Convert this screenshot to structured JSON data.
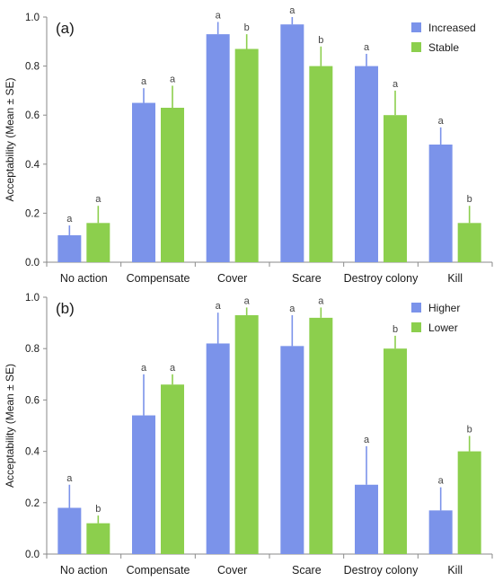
{
  "chart_data": [
    {
      "type": "bar",
      "panel_label": "(a)",
      "ylabel": "Acceptability (Mean ± SE)",
      "ylim": [
        0,
        1.0
      ],
      "yticks": [
        "0.0",
        "0.2",
        "0.4",
        "0.6",
        "0.8",
        "1.0"
      ],
      "categories": [
        "No action",
        "Compensate",
        "Cover",
        "Scare",
        "Destroy colony",
        "Kill"
      ],
      "legend_position": "top-right",
      "series": [
        {
          "name": "Increased",
          "color": "#7b93ea",
          "values": [
            0.11,
            0.65,
            0.93,
            0.97,
            0.8,
            0.48
          ],
          "errors": [
            0.04,
            0.06,
            0.05,
            0.04,
            0.05,
            0.07
          ],
          "letters": [
            "a",
            "a",
            "a",
            "a",
            "a",
            "a"
          ]
        },
        {
          "name": "Stable",
          "color": "#8ccf4d",
          "values": [
            0.16,
            0.63,
            0.87,
            0.8,
            0.6,
            0.16
          ],
          "errors": [
            0.07,
            0.09,
            0.06,
            0.08,
            0.1,
            0.07
          ],
          "letters": [
            "a",
            "a",
            "b",
            "b",
            "a",
            "b"
          ]
        }
      ]
    },
    {
      "type": "bar",
      "panel_label": "(b)",
      "ylabel": "Acceptability (Mean ± SE)",
      "ylim": [
        0,
        1.0
      ],
      "yticks": [
        "0.0",
        "0.2",
        "0.4",
        "0.6",
        "0.8",
        "1.0"
      ],
      "categories": [
        "No action",
        "Compensate",
        "Cover",
        "Scare",
        "Destroy colony",
        "Kill"
      ],
      "legend_position": "top-right",
      "series": [
        {
          "name": "Higher",
          "color": "#7b93ea",
          "values": [
            0.18,
            0.54,
            0.82,
            0.81,
            0.27,
            0.17
          ],
          "errors": [
            0.09,
            0.16,
            0.12,
            0.12,
            0.15,
            0.09
          ],
          "letters": [
            "a",
            "a",
            "a",
            "a",
            "a",
            "a"
          ]
        },
        {
          "name": "Lower",
          "color": "#8ccf4d",
          "values": [
            0.12,
            0.66,
            0.93,
            0.92,
            0.8,
            0.4
          ],
          "errors": [
            0.03,
            0.04,
            0.03,
            0.04,
            0.05,
            0.06
          ],
          "letters": [
            "b",
            "a",
            "a",
            "a",
            "b",
            "b"
          ]
        }
      ]
    }
  ]
}
